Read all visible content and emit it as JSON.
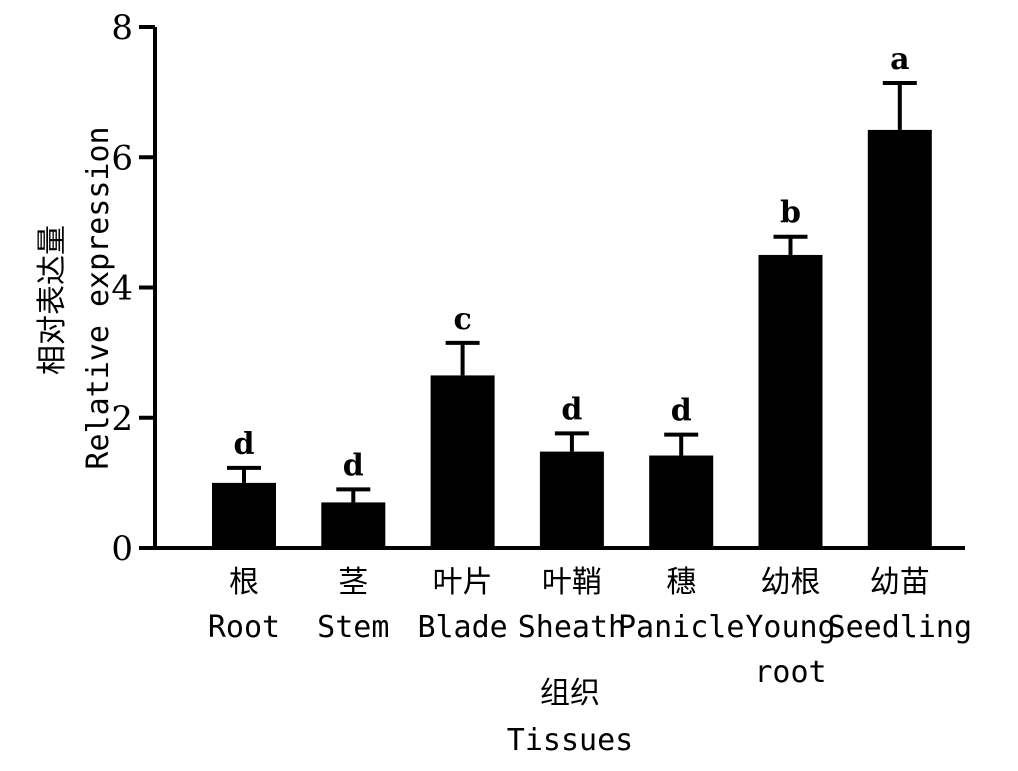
{
  "chart_data": {
    "type": "bar",
    "categories": [
      {
        "zh": "根",
        "en": [
          "Root"
        ]
      },
      {
        "zh": "茎",
        "en": [
          "Stem"
        ]
      },
      {
        "zh": "叶片",
        "en": [
          "Blade"
        ]
      },
      {
        "zh": "叶鞘",
        "en": [
          "Sheath"
        ]
      },
      {
        "zh": "穗",
        "en": [
          "Panicle"
        ]
      },
      {
        "zh": "幼根",
        "en": [
          "Young",
          "root"
        ]
      },
      {
        "zh": "幼苗",
        "en": [
          "Seedling"
        ]
      }
    ],
    "values": [
      1.0,
      0.7,
      2.65,
      1.48,
      1.42,
      4.5,
      6.42
    ],
    "errors": [
      0.23,
      0.2,
      0.5,
      0.28,
      0.32,
      0.28,
      0.72
    ],
    "significance": [
      "d",
      "d",
      "c",
      "d",
      "d",
      "b",
      "a"
    ],
    "ylabel_zh": "相对表达量",
    "ylabel_en": "Relative expression",
    "xlabel_zh": "组织",
    "xlabel_en": "Tissues",
    "ylim": [
      0,
      8
    ],
    "yticks": [
      0,
      2,
      4,
      6,
      8
    ],
    "grid": false,
    "bar_color": "#000000"
  }
}
